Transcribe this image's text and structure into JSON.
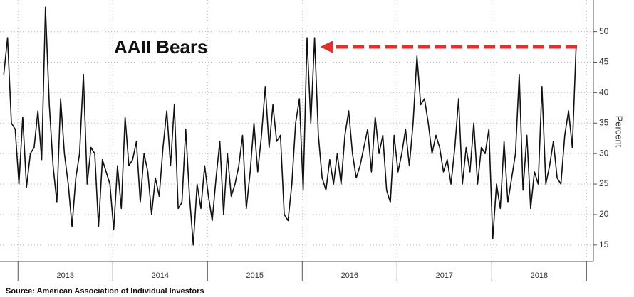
{
  "chart_data": {
    "type": "line",
    "title": "AAII Bears",
    "y_label": "Percent",
    "source": "Source: American Association of Individual Investors",
    "color": "#111111",
    "grid": true,
    "x": [
      2012.85,
      2012.89,
      2012.93,
      2012.97,
      2013.01,
      2013.05,
      2013.09,
      2013.13,
      2013.17,
      2013.21,
      2013.25,
      2013.29,
      2013.33,
      2013.37,
      2013.41,
      2013.45,
      2013.49,
      2013.53,
      2013.57,
      2013.61,
      2013.65,
      2013.69,
      2013.73,
      2013.77,
      2013.81,
      2013.85,
      2013.89,
      2013.93,
      2013.97,
      2014.01,
      2014.05,
      2014.09,
      2014.13,
      2014.17,
      2014.21,
      2014.25,
      2014.29,
      2014.33,
      2014.37,
      2014.41,
      2014.45,
      2014.49,
      2014.53,
      2014.57,
      2014.61,
      2014.65,
      2014.69,
      2014.73,
      2014.77,
      2014.81,
      2014.85,
      2014.89,
      2014.93,
      2014.97,
      2015.01,
      2015.05,
      2015.09,
      2015.13,
      2015.17,
      2015.21,
      2015.25,
      2015.29,
      2015.33,
      2015.37,
      2015.41,
      2015.45,
      2015.49,
      2015.53,
      2015.57,
      2015.61,
      2015.65,
      2015.69,
      2015.73,
      2015.77,
      2015.81,
      2015.85,
      2015.89,
      2015.93,
      2015.97,
      2016.01,
      2016.05,
      2016.09,
      2016.13,
      2016.17,
      2016.21,
      2016.25,
      2016.29,
      2016.33,
      2016.37,
      2016.41,
      2016.45,
      2016.49,
      2016.53,
      2016.57,
      2016.61,
      2016.65,
      2016.69,
      2016.73,
      2016.77,
      2016.81,
      2016.85,
      2016.89,
      2016.93,
      2016.97,
      2017.01,
      2017.05,
      2017.09,
      2017.13,
      2017.17,
      2017.21,
      2017.25,
      2017.29,
      2017.33,
      2017.37,
      2017.41,
      2017.45,
      2017.49,
      2017.53,
      2017.57,
      2017.61,
      2017.65,
      2017.69,
      2017.73,
      2017.77,
      2017.81,
      2017.85,
      2017.89,
      2017.93,
      2017.97,
      2018.01,
      2018.05,
      2018.09,
      2018.13,
      2018.17,
      2018.21,
      2018.25,
      2018.29,
      2018.33,
      2018.37,
      2018.41,
      2018.45,
      2018.49,
      2018.53,
      2018.57,
      2018.61,
      2018.65,
      2018.69,
      2018.73,
      2018.77,
      2018.81,
      2018.85,
      2018.89
    ],
    "values": [
      43,
      49,
      35,
      34,
      25,
      36,
      24.5,
      30,
      31,
      37,
      29,
      54,
      38,
      28,
      22,
      39,
      30,
      25,
      18,
      26,
      30,
      43,
      25,
      31,
      30,
      18,
      29,
      27,
      25,
      17.5,
      28,
      21,
      36,
      28,
      29,
      32,
      22,
      30,
      27,
      20,
      26,
      23,
      31,
      37,
      28,
      38,
      21,
      22,
      34,
      23,
      15,
      25,
      21,
      28,
      23,
      19,
      26,
      32,
      20,
      30,
      23,
      25,
      28,
      33,
      21,
      27,
      35,
      27,
      33,
      41,
      31,
      38,
      32,
      33,
      20,
      19,
      25,
      35,
      39,
      24,
      49,
      35,
      49,
      33,
      26,
      24,
      29,
      25,
      30,
      25,
      33,
      37,
      30,
      26,
      28,
      31,
      34,
      27,
      36,
      30,
      33,
      24,
      22,
      33,
      27,
      30,
      34,
      28,
      35,
      46,
      38,
      39,
      35,
      30,
      33,
      31,
      27,
      29,
      25,
      31,
      39,
      25,
      31,
      27,
      35,
      25,
      31,
      30,
      34,
      16,
      25,
      21,
      32,
      22,
      26,
      30,
      43,
      24,
      33,
      21,
      27,
      25,
      41,
      25,
      28,
      32,
      26,
      25,
      33,
      37,
      31,
      47.5
    ],
    "xlim": [
      2012.81,
      2019.05
    ],
    "xticks": [
      2013,
      2014,
      2015,
      2016,
      2017,
      2018,
      2019
    ],
    "x_band_labels": [
      "2013",
      "2014",
      "2015",
      "2016",
      "2017",
      "2018"
    ],
    "ylim": [
      12.3,
      55.2
    ],
    "yticks": [
      15,
      20,
      25,
      30,
      35,
      40,
      45,
      50
    ],
    "reference_arrow": {
      "value": 47.5,
      "from": 2018.9,
      "to": 2016.19,
      "color": "#e03030"
    }
  }
}
